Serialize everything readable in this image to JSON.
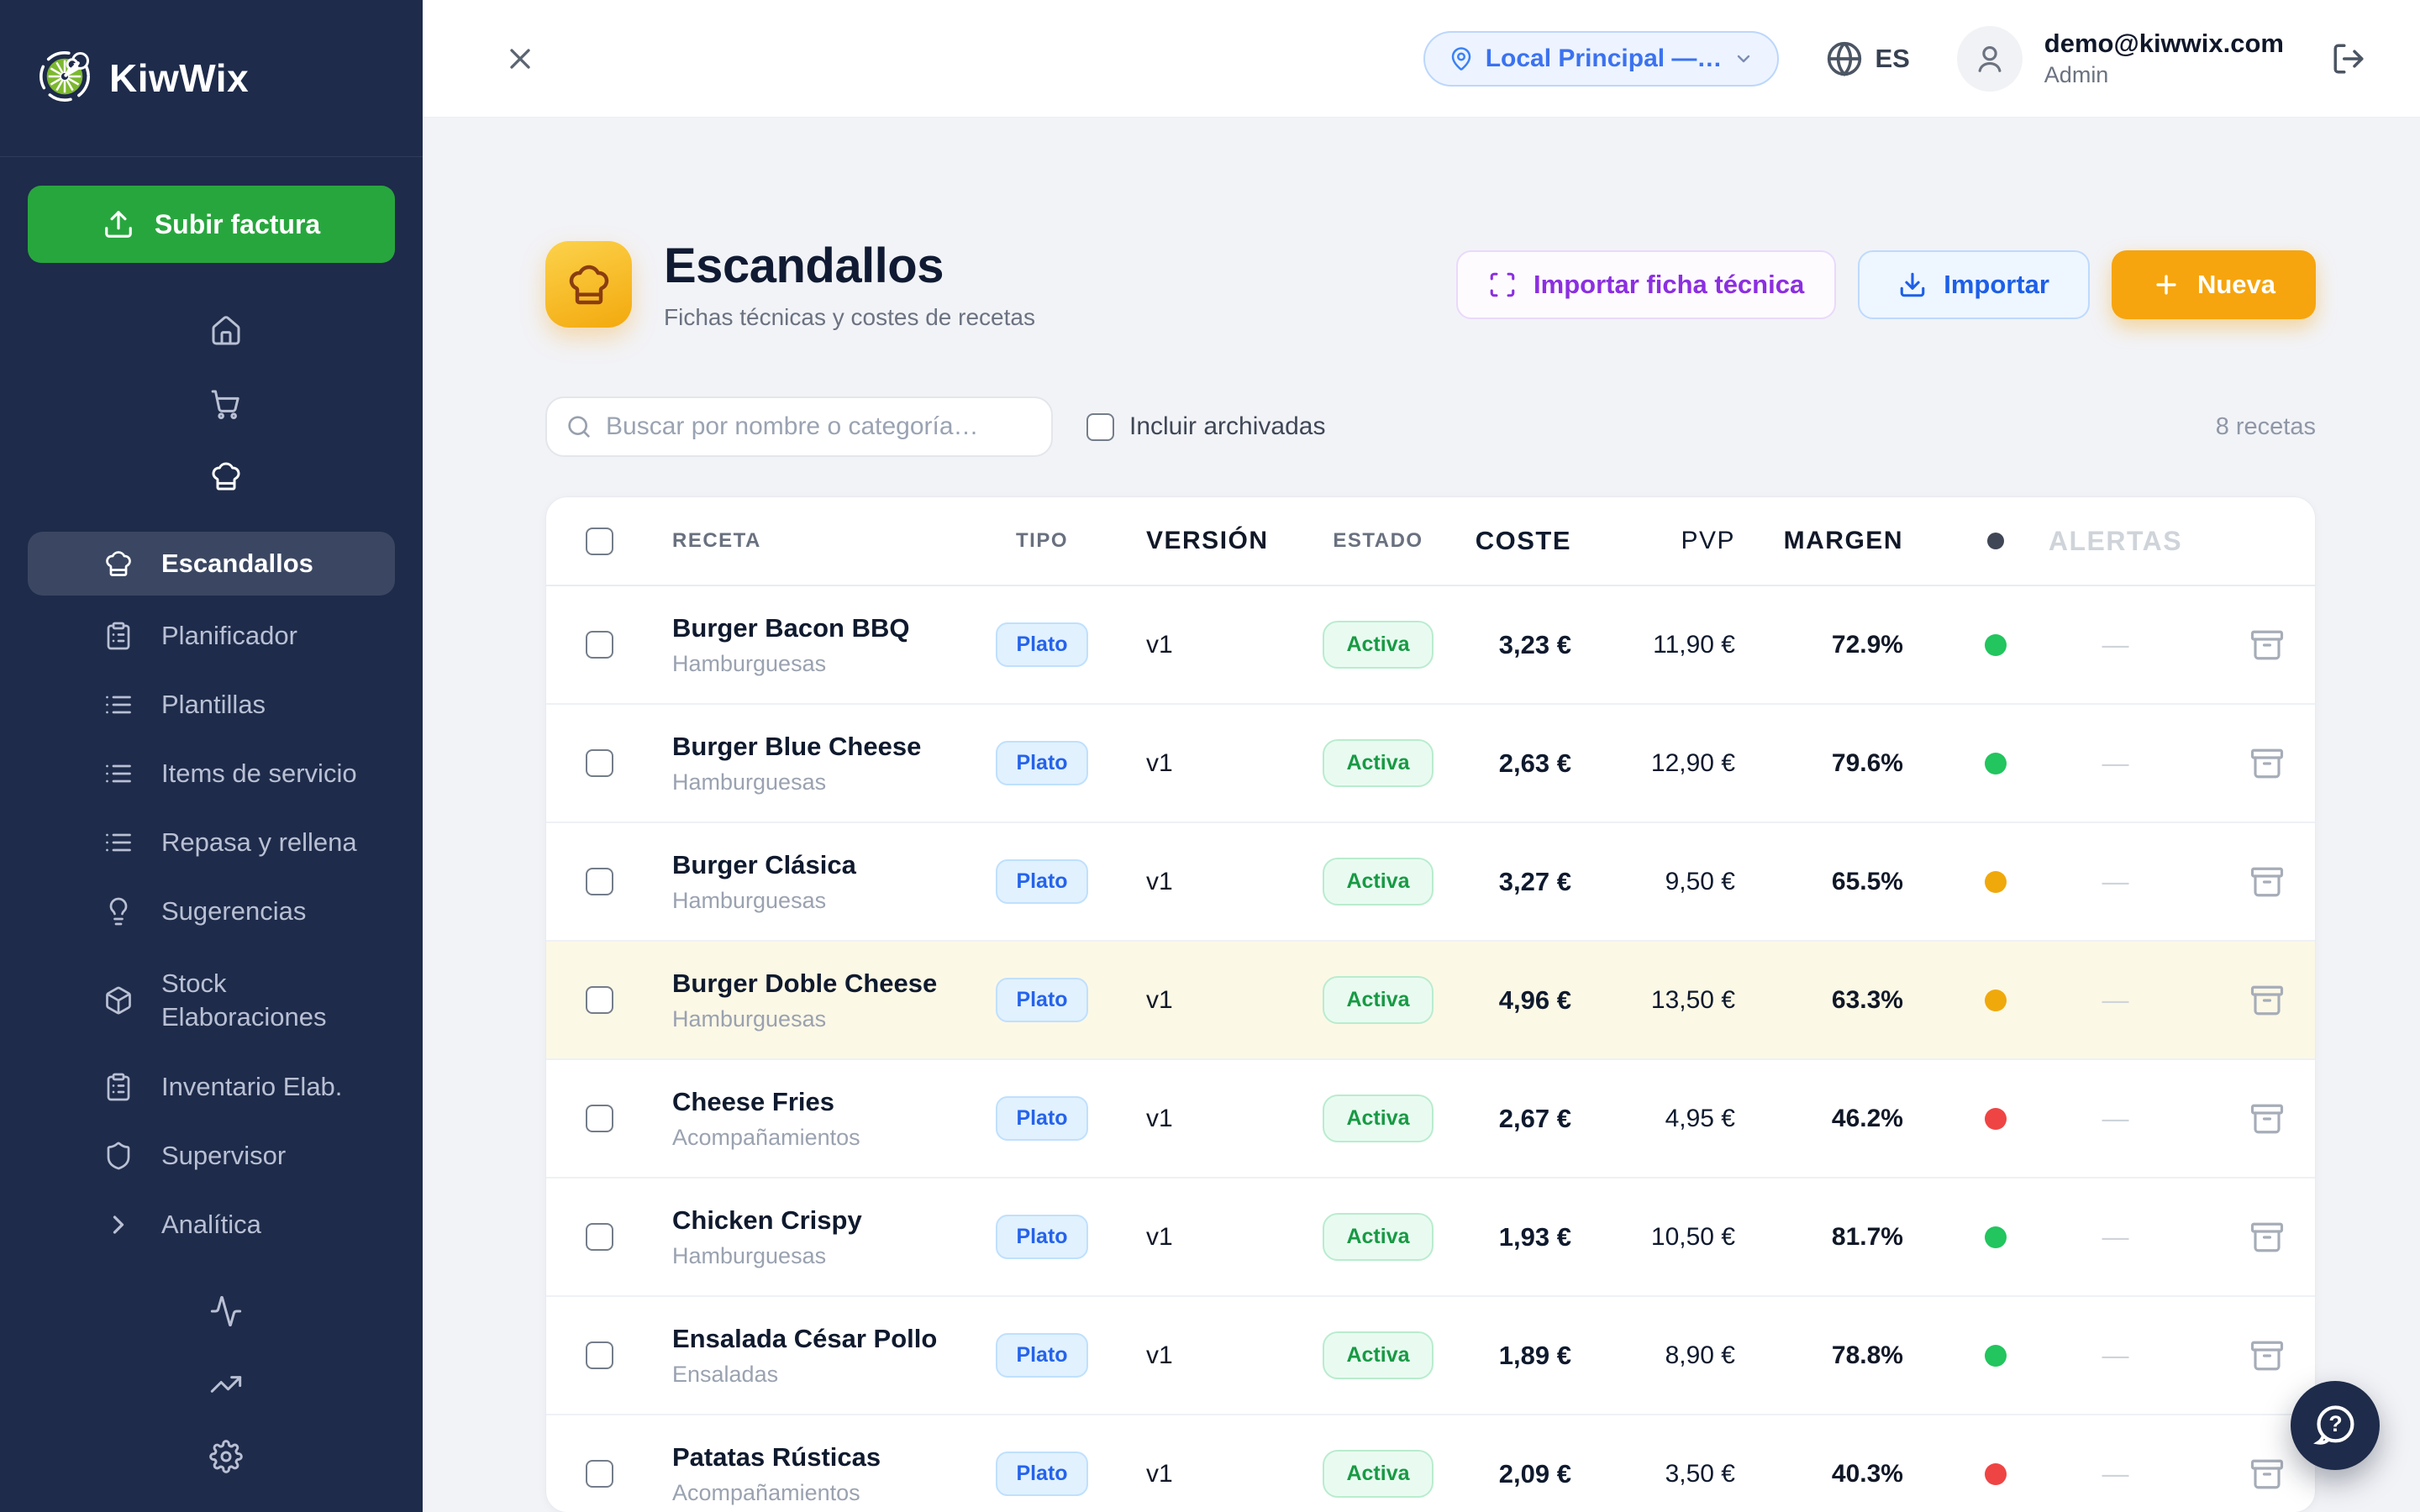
{
  "brand": {
    "name": "KiwWix"
  },
  "topbar": {
    "location_selector": "Local Principal —…",
    "language": "ES",
    "user": {
      "email": "demo@kiwwix.com",
      "role": "Admin"
    }
  },
  "sidebar": {
    "upload_button": "Subir factura",
    "items": [
      {
        "id": "inicio",
        "label": "Inicio",
        "icon": "home",
        "level": "main"
      },
      {
        "id": "compras",
        "label": "Compras",
        "icon": "cart",
        "level": "main",
        "chevron": "right"
      },
      {
        "id": "cocina",
        "label": "Cocina",
        "icon": "chef",
        "level": "main",
        "chevron": "down",
        "open": true
      },
      {
        "id": "escandallos",
        "label": "Escandallos",
        "icon": "chef",
        "level": "sub",
        "active": true
      },
      {
        "id": "planificador",
        "label": "Planificador",
        "icon": "clipboard",
        "level": "sub"
      },
      {
        "id": "plantillas",
        "label": "Plantillas",
        "icon": "list",
        "level": "sub"
      },
      {
        "id": "items-de-servicio",
        "label": "Items de servicio",
        "icon": "list",
        "level": "sub"
      },
      {
        "id": "repasa-y-rellena",
        "label": "Repasa y rellena",
        "icon": "list",
        "level": "sub"
      },
      {
        "id": "sugerencias",
        "label": "Sugerencias",
        "icon": "bulb",
        "level": "sub"
      },
      {
        "id": "stock-elaboraciones",
        "label": "Stock Elaboraciones",
        "icon": "package",
        "level": "sub",
        "tall": true,
        "wrap": true
      },
      {
        "id": "inventario-elab",
        "label": "Inventario Elab.",
        "icon": "clipboard",
        "level": "sub"
      },
      {
        "id": "supervisor",
        "label": "Supervisor",
        "icon": "shield",
        "level": "sub"
      },
      {
        "id": "analitica",
        "label": "Analítica",
        "icon": "chevright",
        "level": "sub"
      },
      {
        "id": "operaciones",
        "label": "Operaciones",
        "icon": "activity",
        "level": "main",
        "chevron": "right",
        "gapTop": true
      },
      {
        "id": "ventas",
        "label": "Ventas",
        "icon": "trending",
        "level": "main"
      },
      {
        "id": "configuracion",
        "label": "Configuración",
        "icon": "gear",
        "level": "main",
        "chevron": "right"
      }
    ]
  },
  "page": {
    "title": "Escandallos",
    "subtitle": "Fichas técnicas y costes de recetas",
    "buttons": {
      "import_datasheet": "Importar ficha técnica",
      "import": "Importar",
      "new": "Nueva"
    },
    "search_placeholder": "Buscar por nombre o categoría…",
    "include_archived_label": "Incluir archivadas",
    "count": "8 recetas"
  },
  "table": {
    "columns": [
      "RECETA",
      "TIPO",
      "VERSIÓN",
      "ESTADO",
      "COSTE",
      "PVP",
      "MARGEN",
      "ALERTAS"
    ],
    "rows": [
      {
        "name": "Burger Bacon BBQ",
        "category": "Hamburguesas",
        "type": "Plato",
        "version": "v1",
        "status": "Activa",
        "cost": "3,23 €",
        "pvp": "11,90 €",
        "margin": "72.9%",
        "dot": "green",
        "alert": "—"
      },
      {
        "name": "Burger Blue Cheese",
        "category": "Hamburguesas",
        "type": "Plato",
        "version": "v1",
        "status": "Activa",
        "cost": "2,63 €",
        "pvp": "12,90 €",
        "margin": "79.6%",
        "dot": "green",
        "alert": "—"
      },
      {
        "name": "Burger Clásica",
        "category": "Hamburguesas",
        "type": "Plato",
        "version": "v1",
        "status": "Activa",
        "cost": "3,27 €",
        "pvp": "9,50 €",
        "margin": "65.5%",
        "dot": "amber",
        "alert": "—"
      },
      {
        "name": "Burger Doble Cheese",
        "category": "Hamburguesas",
        "type": "Plato",
        "version": "v1",
        "status": "Activa",
        "cost": "4,96 €",
        "pvp": "13,50 €",
        "margin": "63.3%",
        "dot": "amber",
        "alert": "—",
        "highlighted": true
      },
      {
        "name": "Cheese Fries",
        "category": "Acompañamientos",
        "type": "Plato",
        "version": "v1",
        "status": "Activa",
        "cost": "2,67 €",
        "pvp": "4,95 €",
        "margin": "46.2%",
        "dot": "red",
        "alert": "—"
      },
      {
        "name": "Chicken Crispy",
        "category": "Hamburguesas",
        "type": "Plato",
        "version": "v1",
        "status": "Activa",
        "cost": "1,93 €",
        "pvp": "10,50 €",
        "margin": "81.7%",
        "dot": "green",
        "alert": "—"
      },
      {
        "name": "Ensalada César Pollo",
        "category": "Ensaladas",
        "type": "Plato",
        "version": "v1",
        "status": "Activa",
        "cost": "1,89 €",
        "pvp": "8,90 €",
        "margin": "78.8%",
        "dot": "green",
        "alert": "—"
      },
      {
        "name": "Patatas Rústicas",
        "category": "Acompañamientos",
        "type": "Plato",
        "version": "v1",
        "status": "Activa",
        "cost": "2,09 €",
        "pvp": "3,50 €",
        "margin": "40.3%",
        "dot": "red",
        "alert": "—"
      }
    ]
  },
  "colors": {
    "sidebar_bg": "#1e2b4a",
    "upload_green": "#28a63e",
    "new_orange": "#f6a50e",
    "import_blue": "#1d5fe8",
    "scan_purple": "#8b2fe0",
    "accent_amber_icon": "#f3a90d",
    "status_green": "#22c55e",
    "status_amber": "#f0a90b",
    "status_red": "#ef4444",
    "highlight_row": "#fcf8e6"
  }
}
